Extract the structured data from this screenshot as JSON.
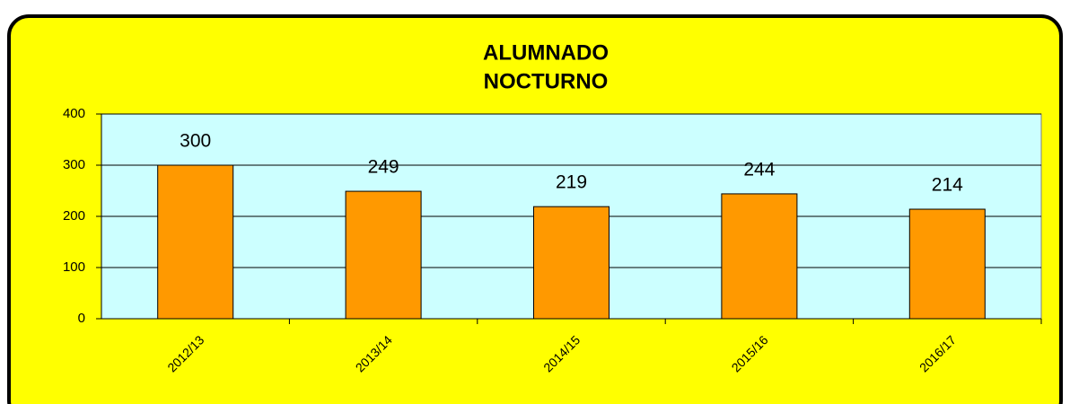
{
  "chart_data": {
    "type": "bar",
    "title": [
      "ALUMNADO",
      "NOCTURNO"
    ],
    "categories": [
      "2012/13",
      "2013/14",
      "2014/15",
      "2015/16",
      "2016/17"
    ],
    "values": [
      300,
      249,
      219,
      244,
      214
    ],
    "color": "#ff9900",
    "ylim": [
      0,
      400
    ],
    "yticks": [
      0,
      100,
      200,
      300,
      400
    ],
    "grid": true
  }
}
